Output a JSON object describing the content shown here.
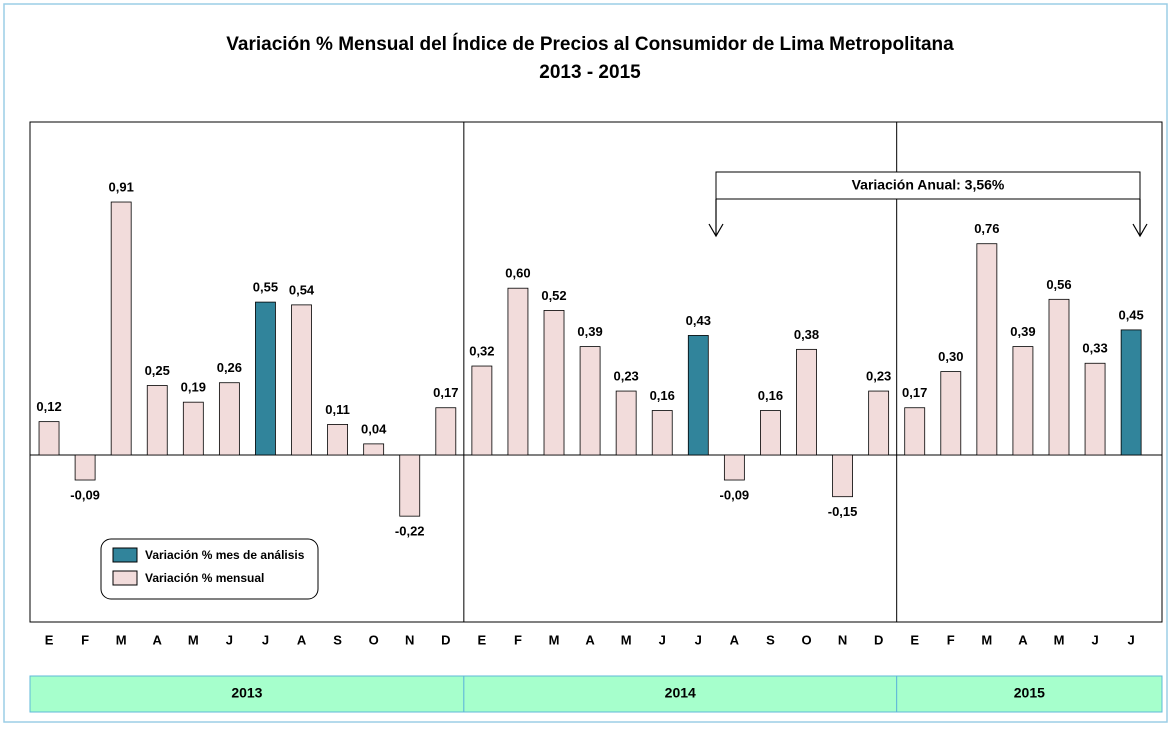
{
  "chart_data": {
    "type": "bar",
    "title": "Variación % Mensual del Índice de Precios al Consumidor de Lima Metropolitana",
    "subtitle": "2013 - 2015",
    "annotation": "Variación Anual: 3,56%",
    "categories": [
      "E",
      "F",
      "M",
      "A",
      "M",
      "J",
      "J",
      "A",
      "S",
      "O",
      "N",
      "D",
      "E",
      "F",
      "M",
      "A",
      "M",
      "J",
      "J",
      "A",
      "S",
      "O",
      "N",
      "D",
      "E",
      "F",
      "M",
      "A",
      "M",
      "J",
      "J"
    ],
    "years": [
      "2013",
      "2014",
      "2015"
    ],
    "series": [
      {
        "name": "Variación % mes de análisis",
        "color": "#31849b",
        "values": [
          null,
          null,
          null,
          null,
          null,
          null,
          0.55,
          null,
          null,
          null,
          null,
          null,
          null,
          null,
          null,
          null,
          null,
          null,
          0.43,
          null,
          null,
          null,
          null,
          null,
          null,
          null,
          null,
          null,
          null,
          null,
          0.45
        ],
        "value_labels": [
          null,
          null,
          null,
          null,
          null,
          null,
          "0,55",
          null,
          null,
          null,
          null,
          null,
          null,
          null,
          null,
          null,
          null,
          null,
          "0,43",
          null,
          null,
          null,
          null,
          null,
          null,
          null,
          null,
          null,
          null,
          null,
          "0,45"
        ]
      },
      {
        "name": "Variación % mensual",
        "color": "#f2dcdb",
        "values": [
          0.12,
          -0.09,
          0.91,
          0.25,
          0.19,
          0.26,
          null,
          0.54,
          0.11,
          0.04,
          -0.22,
          0.17,
          0.32,
          0.6,
          0.52,
          0.39,
          0.23,
          0.16,
          null,
          -0.09,
          0.16,
          0.38,
          -0.15,
          0.23,
          0.17,
          0.3,
          0.76,
          0.39,
          0.56,
          0.33,
          null
        ],
        "value_labels": [
          "0,12",
          "-0,09",
          "0,91",
          "0,25",
          "0,19",
          "0,26",
          null,
          "0,54",
          "0,11",
          "0,04",
          "-0,22",
          "0,17",
          "0,32",
          "0,60",
          "0,52",
          "0,39",
          "0,23",
          "0,16",
          null,
          "-0,09",
          "0,16",
          "0,38",
          "-0,15",
          "0,23",
          "0,17",
          "0,30",
          "0,76",
          "0,39",
          "0,56",
          "0,33",
          null
        ]
      }
    ]
  }
}
